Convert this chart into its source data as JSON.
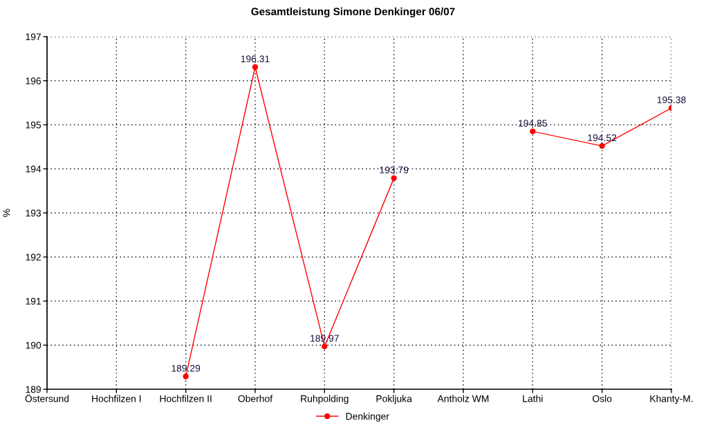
{
  "chart_data": {
    "type": "line",
    "title": "Gesamtleistung Simone Denkinger 06/07",
    "ylabel": "%",
    "categories": [
      "Östersund",
      "Hochfilzen I",
      "Hochfilzen II",
      "Oberhof",
      "Ruhpolding",
      "Pokljuka",
      "Antholz WM",
      "Lathi",
      "Oslo",
      "Khanty-M."
    ],
    "series": [
      {
        "name": "Denkinger",
        "color": "#ff0000",
        "values": [
          null,
          null,
          189.29,
          196.31,
          189.97,
          193.79,
          null,
          194.85,
          194.52,
          195.38
        ]
      }
    ],
    "ylim": [
      189,
      197
    ],
    "yticks": [
      189,
      190,
      191,
      192,
      193,
      194,
      195,
      196,
      197
    ],
    "grid": true,
    "legend": "bottom",
    "marker": "circle",
    "line_style": "solid",
    "data_labels": true
  }
}
